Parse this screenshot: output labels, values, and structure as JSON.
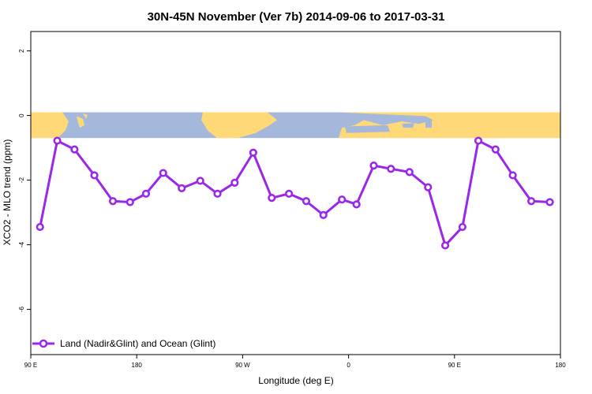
{
  "colors": {
    "series": "#9b27e8",
    "ocean": "#a3b8db",
    "land": "#ffd978",
    "axis": "#000000"
  },
  "chart_data": {
    "type": "line",
    "title": "30N-45N November (Ver 7b)   2014-09-06 to 2017-03-31",
    "xlabel": "Longitude (deg E)",
    "ylabel": "XCO2 - MLO trend (ppm)",
    "xlim": [
      90,
      290
    ],
    "ylim": [
      -7.4,
      2.6
    ],
    "x_ticks": [
      {
        "value": 90,
        "label": "90 E"
      },
      {
        "value": 130,
        "label": "180"
      },
      {
        "value": 170,
        "label": "90 W"
      },
      {
        "value": 210,
        "label": "0"
      },
      {
        "value": 250,
        "label": "90 E"
      },
      {
        "value": 290,
        "label": "180"
      }
    ],
    "y_ticks": [
      {
        "value": 2,
        "label": "2"
      },
      {
        "value": 0,
        "label": "0"
      },
      {
        "value": -2,
        "label": "-2"
      },
      {
        "value": -4,
        "label": "-4"
      },
      {
        "value": -6,
        "label": "-6"
      }
    ],
    "grid": false,
    "legend_position": "bottom-left",
    "background_map": {
      "y_range": [
        0.1,
        -0.7
      ]
    },
    "series": [
      {
        "name": "Land (Nadir&Glint) and Ocean (Glint)",
        "x": [
          93.5,
          100,
          106.5,
          114,
          121,
          127.5,
          133.5,
          140,
          147,
          154,
          160.5,
          167,
          174,
          181,
          187.5,
          194,
          200.5,
          207.5,
          213,
          219.5,
          226,
          233,
          240,
          246.5,
          253,
          259,
          265.5,
          272,
          279,
          286
        ],
        "y": [
          -3.45,
          -0.78,
          -1.05,
          -1.85,
          -2.65,
          -2.68,
          -2.42,
          -1.78,
          -2.25,
          -2.02,
          -2.42,
          -2.08,
          -1.15,
          -2.55,
          -2.42,
          -2.65,
          -3.08,
          -2.6,
          -2.75,
          -1.55,
          -1.65,
          -1.75,
          -2.22,
          -4.02,
          -3.45,
          -0.78,
          -1.05,
          -1.85,
          -2.65,
          -2.68
        ]
      }
    ]
  }
}
